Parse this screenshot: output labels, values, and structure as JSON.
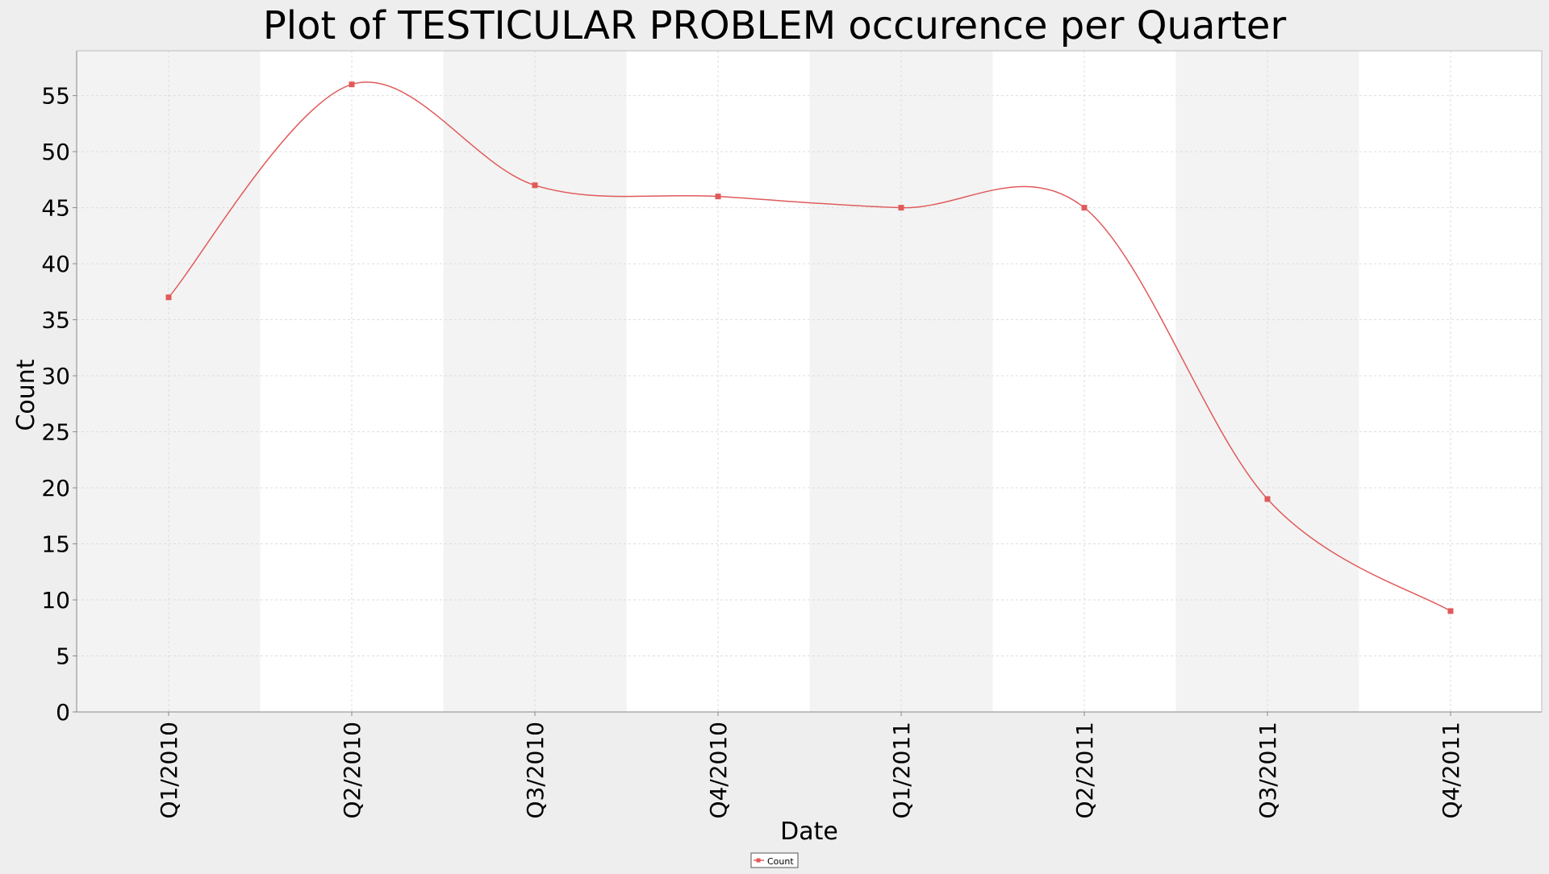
{
  "chart_data": {
    "type": "line",
    "title": "Plot of TESTICULAR PROBLEM occurence per Quarter",
    "xlabel": "Date",
    "ylabel": "Count",
    "categories": [
      "Q1/2010",
      "Q2/2010",
      "Q3/2010",
      "Q4/2010",
      "Q1/2011",
      "Q2/2011",
      "Q3/2011",
      "Q4/2011"
    ],
    "series": [
      {
        "name": "Count",
        "values": [
          37,
          56,
          47,
          46,
          45,
          45,
          19,
          9
        ],
        "color": "#e05a5a"
      }
    ],
    "ylim": [
      0,
      59
    ],
    "yticks": [
      0,
      5,
      10,
      15,
      20,
      25,
      30,
      35,
      40,
      45,
      50,
      55
    ],
    "grid": true,
    "alternating_bands": true,
    "legend": "bottom-center",
    "smooth": true
  },
  "colors": {
    "background": "#eeeeee",
    "plot_background": "#ffffff",
    "band": "#f3f3f3",
    "grid": "#dddddd",
    "series": "#e05a5a"
  }
}
